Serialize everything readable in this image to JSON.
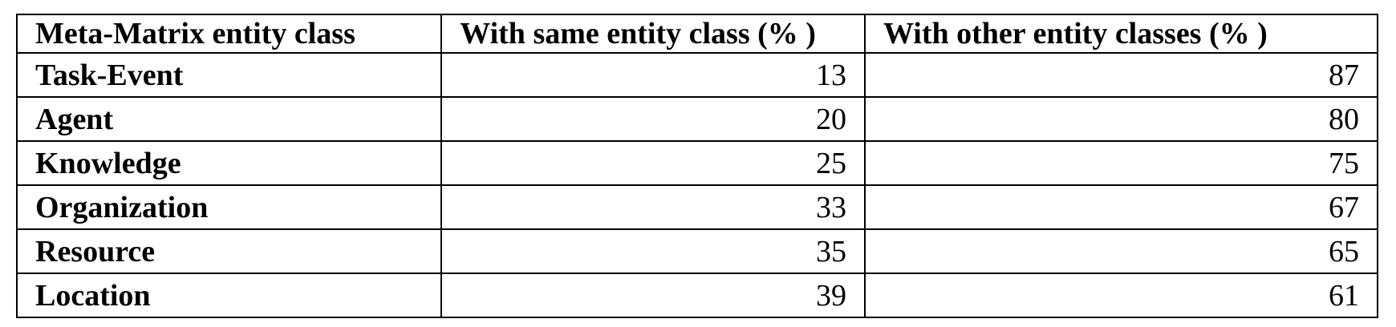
{
  "table": {
    "header": [
      "Meta-Matrix entity class",
      "With same entity class (% )",
      "With other entity classes (% )"
    ],
    "rows": [
      [
        "Task-Event",
        13,
        87
      ],
      [
        "Agent",
        20,
        80
      ],
      [
        "Knowledge",
        25,
        75
      ],
      [
        "Organization",
        33,
        67
      ],
      [
        "Resource",
        35,
        65
      ],
      [
        "Location",
        39,
        61
      ]
    ]
  }
}
